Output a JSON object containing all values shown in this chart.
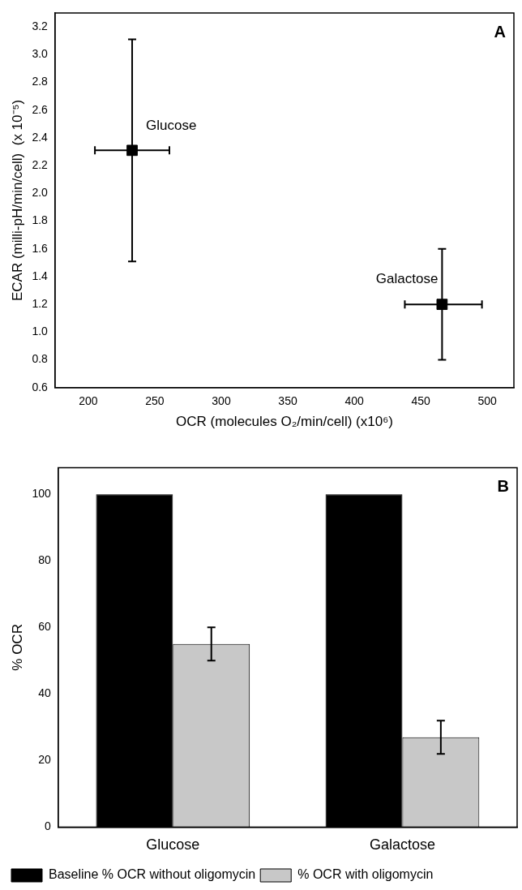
{
  "chart_data": [
    {
      "type": "scatter",
      "xlabel": "OCR (molecules O₂/min/cell) (x10⁶)",
      "ylabel": "ECAR (milli-pH/min/cell)  (x 10⁻⁵)",
      "xlim": [
        175,
        520
      ],
      "ylim": [
        0.6,
        3.3
      ],
      "xticks": [
        200,
        250,
        300,
        350,
        400,
        450,
        500
      ],
      "yticks": [
        {
          "value": 0.6,
          "label": "0.6"
        },
        {
          "value": 0.8,
          "label": "0.8"
        },
        {
          "value": 1,
          "label": "1.0"
        },
        {
          "value": 1.2,
          "label": "1.2"
        },
        {
          "value": 1.4,
          "label": "1.4"
        },
        {
          "value": 1.6,
          "label": "1.6"
        },
        {
          "value": 1.8,
          "label": "1.8"
        },
        {
          "value": 2,
          "label": "2.0"
        },
        {
          "value": 2.2,
          "label": "2.2"
        },
        {
          "value": 2.4,
          "label": "2.4"
        },
        {
          "value": 2.6,
          "label": "2.6"
        },
        {
          "value": 2.8,
          "label": "2.8"
        },
        {
          "value": 3,
          "label": "3.0"
        },
        {
          "value": 3.2,
          "label": "3.2"
        }
      ],
      "marker": "square",
      "series": [
        {
          "color": "#000000",
          "x": [
            233,
            466
          ],
          "values": [
            2.31,
            1.2
          ],
          "errors": [
            [
              1.51,
              3.11
            ],
            [
              0.8,
              1.6
            ]
          ],
          "xerrors": [
            [
              205,
              261
            ],
            [
              438,
              496
            ]
          ]
        }
      ],
      "annotations": [
        "A",
        {
          "text": "Glucose",
          "x": 233,
          "y": 2.31
        },
        {
          "text": "Galactose",
          "x": 466,
          "y": 1.2
        }
      ]
    },
    {
      "type": "bar",
      "ylabel": "% OCR",
      "categories": [
        "Glucose",
        "Galactose"
      ],
      "ylim": [
        0,
        108
      ],
      "yticks": [
        0,
        20,
        40,
        60,
        80,
        100
      ],
      "legend": "bottom",
      "series": [
        {
          "name": "Baseline % OCR without oligomycin",
          "color": "#000000",
          "values": [
            100,
            100
          ]
        },
        {
          "name": "% OCR with oligomycin",
          "color": "#c8c8c8",
          "values": [
            55,
            27
          ],
          "errors": [
            5,
            5
          ]
        }
      ],
      "annotations": [
        "B"
      ]
    }
  ]
}
